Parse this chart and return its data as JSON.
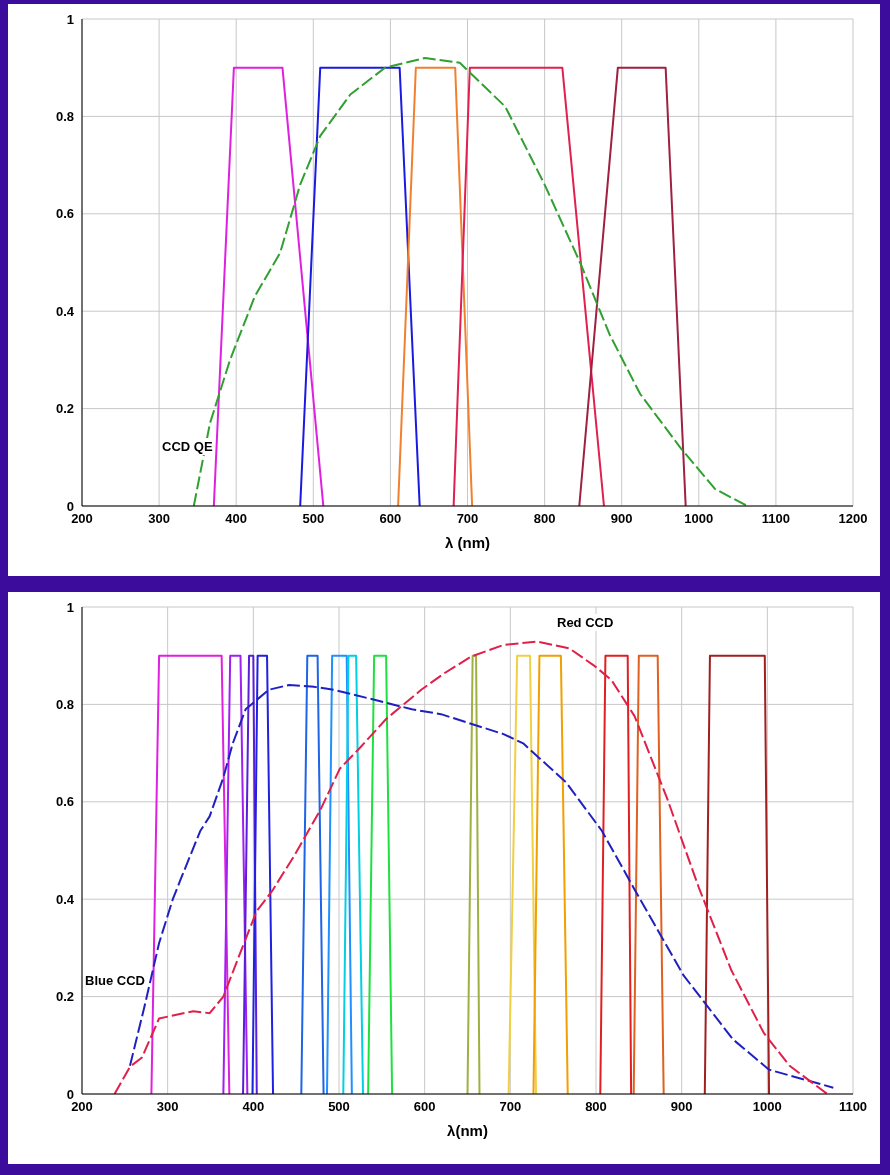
{
  "chart_data": [
    {
      "type": "line",
      "xlabel": "λ (nm)",
      "xlim": [
        200,
        1200
      ],
      "ylim": [
        0,
        1
      ],
      "xticks": [
        200,
        300,
        400,
        500,
        600,
        700,
        800,
        900,
        1000,
        1100,
        1200
      ],
      "yticks": [
        0,
        0.2,
        0.4,
        0.6,
        0.8,
        1
      ],
      "grid": true,
      "annotations": [
        "CCD QE"
      ],
      "series": [
        {
          "color": "#e020e0",
          "line_style": "solid",
          "x": [
            371,
            397,
            460,
            513
          ],
          "values": [
            0,
            0.9,
            0.9,
            0
          ]
        },
        {
          "color": "#1a1ae0",
          "line_style": "solid",
          "x": [
            483,
            509,
            612,
            638
          ],
          "values": [
            0,
            0.9,
            0.9,
            0
          ]
        },
        {
          "color": "#f08030",
          "line_style": "solid",
          "x": [
            610,
            633,
            684,
            706
          ],
          "values": [
            0,
            0.9,
            0.9,
            0
          ]
        },
        {
          "color": "#e02050",
          "line_style": "solid",
          "x": [
            682,
            703,
            823,
            877
          ],
          "values": [
            0,
            0.9,
            0.9,
            0
          ]
        },
        {
          "color": "#a02040",
          "line_style": "solid",
          "x": [
            845,
            895,
            957,
            983
          ],
          "values": [
            0,
            0.9,
            0.9,
            0
          ]
        },
        {
          "color": "#30a030",
          "line_style": "dashed",
          "x": [
            345,
            366,
            392,
            424,
            457,
            483,
            509,
            548,
            593,
            645,
            690,
            749,
            800,
            846,
            885,
            924,
            976,
            1021,
            1063
          ],
          "values": [
            0,
            0.17,
            0.3,
            0.43,
            0.52,
            0.66,
            0.76,
            0.845,
            0.9,
            0.92,
            0.91,
            0.82,
            0.66,
            0.5,
            0.35,
            0.23,
            0.12,
            0.035,
            0
          ]
        }
      ]
    },
    {
      "type": "line",
      "xlabel": "λ(nm)",
      "xlim": [
        200,
        1100
      ],
      "ylim": [
        0,
        1
      ],
      "xticks": [
        200,
        300,
        400,
        500,
        600,
        700,
        800,
        900,
        1000,
        1100
      ],
      "yticks": [
        0,
        0.2,
        0.4,
        0.6,
        0.8,
        1
      ],
      "grid": true,
      "annotations": [
        "Blue CCD",
        "Red CCD"
      ],
      "series": [
        {
          "color": "#e020e0",
          "line_style": "solid",
          "x": [
            281,
            290,
            363,
            372
          ],
          "values": [
            0,
            0.9,
            0.9,
            0
          ]
        },
        {
          "color": "#a020f0",
          "line_style": "solid",
          "x": [
            365,
            373,
            385,
            393
          ],
          "values": [
            0,
            0.9,
            0.9,
            0
          ]
        },
        {
          "color": "#5a1ed8",
          "line_style": "solid",
          "x": [
            388,
            395,
            400,
            404
          ],
          "values": [
            0,
            0.9,
            0.9,
            0
          ]
        },
        {
          "color": "#2020e0",
          "line_style": "solid",
          "x": [
            399,
            405,
            416,
            423
          ],
          "values": [
            0,
            0.9,
            0.9,
            0
          ]
        },
        {
          "color": "#1e64e6",
          "line_style": "solid",
          "x": [
            456,
            463,
            475,
            482
          ],
          "values": [
            0,
            0.9,
            0.9,
            0
          ]
        },
        {
          "color": "#1e90ff",
          "line_style": "solid",
          "x": [
            486,
            492,
            509,
            515
          ],
          "values": [
            0,
            0.9,
            0.9,
            0
          ]
        },
        {
          "color": "#00d0e0",
          "line_style": "solid",
          "x": [
            505,
            511,
            520,
            528
          ],
          "values": [
            0,
            0.9,
            0.9,
            0
          ]
        },
        {
          "color": "#20e040",
          "line_style": "solid",
          "x": [
            534,
            541,
            555,
            562
          ],
          "values": [
            0,
            0.9,
            0.9,
            0
          ]
        },
        {
          "color": "#a0b040",
          "line_style": "solid",
          "x": [
            650,
            656,
            660,
            664
          ],
          "values": [
            0,
            0.9,
            0.9,
            0
          ]
        },
        {
          "color": "#f0d040",
          "line_style": "solid",
          "x": [
            698,
            708,
            723,
            730
          ],
          "values": [
            0,
            0.9,
            0.9,
            0
          ]
        },
        {
          "color": "#f0a000",
          "line_style": "solid",
          "x": [
            727,
            734,
            759,
            767
          ],
          "values": [
            0,
            0.9,
            0.9,
            0
          ]
        },
        {
          "color": "#e02020",
          "line_style": "solid",
          "x": [
            805,
            811,
            837,
            841
          ],
          "values": [
            0,
            0.9,
            0.9,
            0
          ]
        },
        {
          "color": "#e06020",
          "line_style": "solid",
          "x": [
            844,
            850,
            872,
            879
          ],
          "values": [
            0,
            0.9,
            0.9,
            0
          ]
        },
        {
          "color": "#a02020",
          "line_style": "solid",
          "x": [
            927,
            933,
            997,
            1002
          ],
          "values": [
            0,
            0.9,
            0.9,
            0
          ]
        },
        {
          "color": "#2020c0",
          "line_style": "dashed",
          "x": [
            256,
            273,
            290,
            306,
            315,
            338,
            349,
            365,
            376,
            391,
            418,
            442,
            471,
            494,
            547,
            585,
            619,
            692,
            715,
            765,
            807,
            845,
            902,
            960,
            1002,
            1077
          ],
          "values": [
            0.058,
            0.18,
            0.31,
            0.4,
            0.44,
            0.54,
            0.57,
            0.65,
            0.72,
            0.79,
            0.83,
            0.84,
            0.836,
            0.83,
            0.807,
            0.79,
            0.78,
            0.739,
            0.72,
            0.64,
            0.54,
            0.42,
            0.244,
            0.112,
            0.05,
            0.013
          ]
        },
        {
          "color": "#e0204a",
          "line_style": "dashed",
          "x": [
            238,
            256,
            270,
            290,
            330,
            349,
            365,
            387,
            404,
            422,
            448,
            479,
            501,
            524,
            555,
            596,
            623,
            654,
            692,
            731,
            769,
            799,
            818,
            845,
            883,
            920,
            958,
            996,
            1026,
            1070
          ],
          "values": [
            0,
            0.056,
            0.075,
            0.155,
            0.17,
            0.166,
            0.2,
            0.3,
            0.376,
            0.417,
            0.49,
            0.586,
            0.668,
            0.71,
            0.77,
            0.83,
            0.864,
            0.898,
            0.922,
            0.929,
            0.915,
            0.878,
            0.85,
            0.776,
            0.607,
            0.424,
            0.254,
            0.125,
            0.058,
            0
          ]
        }
      ]
    }
  ]
}
